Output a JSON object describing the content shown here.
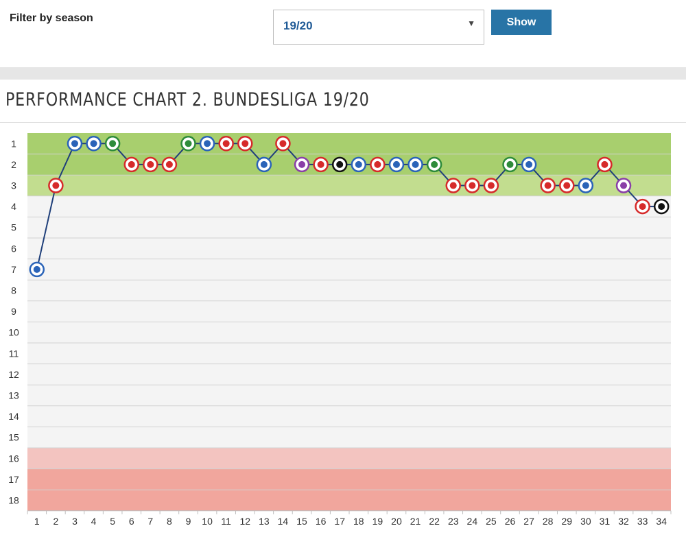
{
  "filter": {
    "label": "Filter by season",
    "selected_season": "19/20",
    "show_label": "Show"
  },
  "chart_data": {
    "type": "line",
    "title": "PERFORMANCE CHART 2. BUNDESLIGA 19/20",
    "x": [
      1,
      2,
      3,
      4,
      5,
      6,
      7,
      8,
      9,
      10,
      11,
      12,
      13,
      14,
      15,
      16,
      17,
      18,
      19,
      20,
      21,
      22,
      23,
      24,
      25,
      26,
      27,
      28,
      29,
      30,
      31,
      32,
      33,
      34
    ],
    "x_tick_labels": [
      "1",
      "2",
      "3",
      "4",
      "5",
      "6",
      "7",
      "8",
      "9",
      "10",
      "11",
      "12",
      "13",
      "14",
      "15",
      "16",
      "17",
      "18",
      "19",
      "20",
      "21",
      "22",
      "23",
      "24",
      "25",
      "26",
      "27",
      "28",
      "29",
      "30",
      "31",
      "32",
      "33",
      "34"
    ],
    "y_tick_labels": [
      "1",
      "2",
      "3",
      "4",
      "5",
      "6",
      "7",
      "8",
      "9",
      "10",
      "11",
      "12",
      "13",
      "14",
      "15",
      "16",
      "17",
      "18"
    ],
    "y_range": [
      1,
      18
    ],
    "y_inverted": true,
    "series": [
      {
        "values": [
          7,
          3,
          1,
          1,
          1,
          2,
          2,
          2,
          1,
          1,
          1,
          1,
          2,
          1,
          2,
          2,
          2,
          2,
          2,
          2,
          2,
          2,
          3,
          3,
          3,
          2,
          2,
          3,
          3,
          3,
          2,
          3,
          4,
          4
        ],
        "color": "#1f3f7a",
        "markers": [
          "blue-round-crest",
          "red-fcn-crest",
          "blue-bochum-crest",
          "blue-ksc-crest",
          "green-96-crest",
          "red-white-crest",
          "red-green-crest",
          "red-j-crest",
          "green-clover-crest",
          "blue-white-crest",
          "red-yellow-crest",
          "red-round-crest",
          "blue-round-crest",
          "red-d-crest",
          "purple-ifl-crest",
          "red-blue-crest",
          "black-white-crest",
          "blue-round-crest",
          "red-fcn-crest",
          "blue-bochum-crest",
          "blue-ksc-crest",
          "green-96-crest",
          "red-white-crest",
          "red-green-crest",
          "red-j-crest",
          "green-clover-crest",
          "blue-white-crest",
          "red-yellow-crest",
          "red-round-crest",
          "blue-round-crest",
          "red-d-crest",
          "purple-ifl-crest",
          "red-blue-crest",
          "black-white-crest"
        ]
      }
    ],
    "zones": [
      {
        "from": 1,
        "to": 2,
        "color": "#a8cf6e"
      },
      {
        "from": 3,
        "to": 3,
        "color": "#c2dd8f"
      },
      {
        "from": 4,
        "to": 15,
        "color": "#f4f4f4"
      },
      {
        "from": 16,
        "to": 16,
        "color": "#f3c4c0"
      },
      {
        "from": 17,
        "to": 18,
        "color": "#f1a69d"
      }
    ],
    "grid": true,
    "legend": "none"
  }
}
